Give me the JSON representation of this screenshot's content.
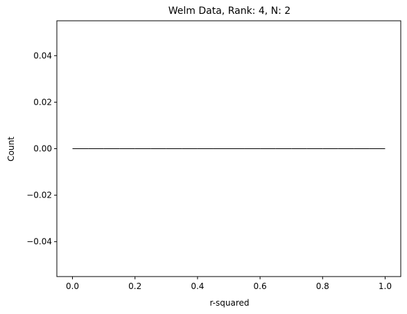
{
  "chart_data": {
    "type": "bar",
    "title": "Welm Data, Rank: 4, N: 2",
    "xlabel": "r-squared",
    "ylabel": "Count",
    "xlim": [
      -0.05,
      1.05
    ],
    "ylim": [
      -0.055,
      0.055
    ],
    "x_ticks": [
      0.0,
      0.2,
      0.4,
      0.6,
      0.8,
      1.0
    ],
    "x_tick_labels": [
      "0.0",
      "0.2",
      "0.4",
      "0.6",
      "0.8",
      "1.0"
    ],
    "y_ticks": [
      -0.04,
      -0.02,
      0.0,
      0.02,
      0.04
    ],
    "y_tick_labels": [
      "−0.04",
      "−0.02",
      "0.00",
      "0.02",
      "0.04"
    ],
    "bins": {
      "start": 0.0,
      "end": 1.0,
      "count": 20
    },
    "values": [
      0,
      0,
      0,
      0,
      0,
      0,
      0,
      0,
      0,
      0,
      0,
      0,
      0,
      0,
      0,
      0,
      0,
      0,
      0,
      0
    ],
    "edge_color": "#000000",
    "grid": false,
    "legend": false
  }
}
